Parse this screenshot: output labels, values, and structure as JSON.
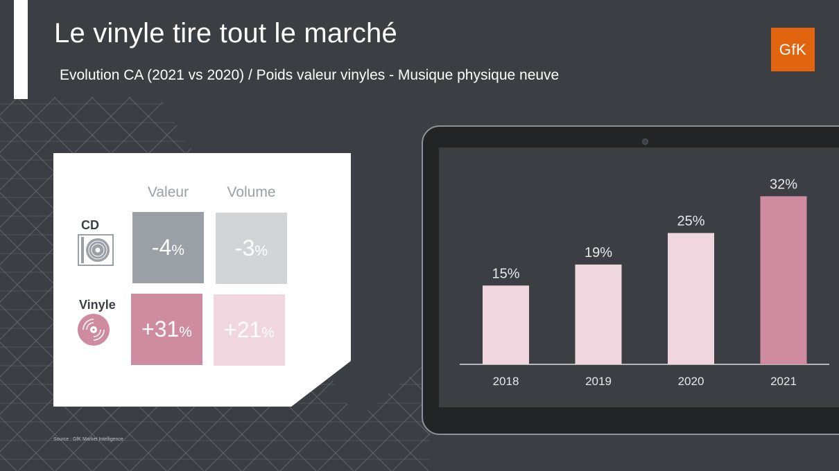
{
  "title": "Le vinyle tire tout le marché",
  "subtitle": "Evolution CA (2021 vs 2020) / Poids valeur vinyles - Musique physique neuve",
  "logo": "GfK",
  "source": "Source : GfK Market Intelligence",
  "colors": {
    "background": "#3b3f44",
    "logo": "#e2640f",
    "cd_valeur": "#9aa0a6",
    "cd_volume": "#d2d5d8",
    "vinyle_valeur": "#cf8ba0",
    "vinyle_volume": "#f0d6df",
    "bar_light": "#f0d6df",
    "bar_highlight": "#cf8ba0"
  },
  "table": {
    "columns": [
      "Valeur",
      "Volume"
    ],
    "rows": [
      {
        "label": "CD",
        "icon": "cd-icon",
        "valeur": {
          "num": "-4",
          "unit": "%"
        },
        "volume": {
          "num": "-3",
          "unit": "%"
        }
      },
      {
        "label": "Vinyle",
        "icon": "vinyl-icon",
        "valeur": {
          "num": "+31",
          "unit": "%"
        },
        "volume": {
          "num": "+21",
          "unit": "%"
        }
      }
    ]
  },
  "chart_data": {
    "type": "bar",
    "categories": [
      "2018",
      "2019",
      "2020",
      "2021"
    ],
    "values": [
      15,
      19,
      25,
      32
    ],
    "value_labels": [
      "15%",
      "19%",
      "25%",
      "32%"
    ],
    "highlight_index": 3,
    "ylim": [
      0,
      36
    ],
    "grid": false,
    "legend": "none"
  }
}
